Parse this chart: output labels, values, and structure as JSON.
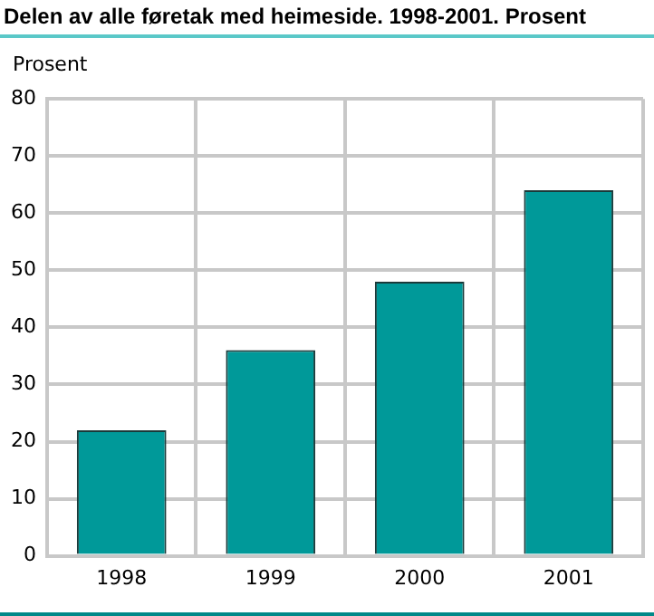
{
  "chart_data": {
    "type": "bar",
    "title": "Delen av alle føretak med heimeside. 1998-2001. Prosent",
    "ylabel": "Prosent",
    "categories": [
      "1998",
      "1999",
      "2000",
      "2001"
    ],
    "values": [
      22,
      36,
      48,
      64
    ],
    "color": "#009999",
    "ylim": [
      0,
      80
    ],
    "yticks": [
      0,
      10,
      20,
      30,
      40,
      50,
      60,
      70,
      80
    ],
    "grid": true
  }
}
